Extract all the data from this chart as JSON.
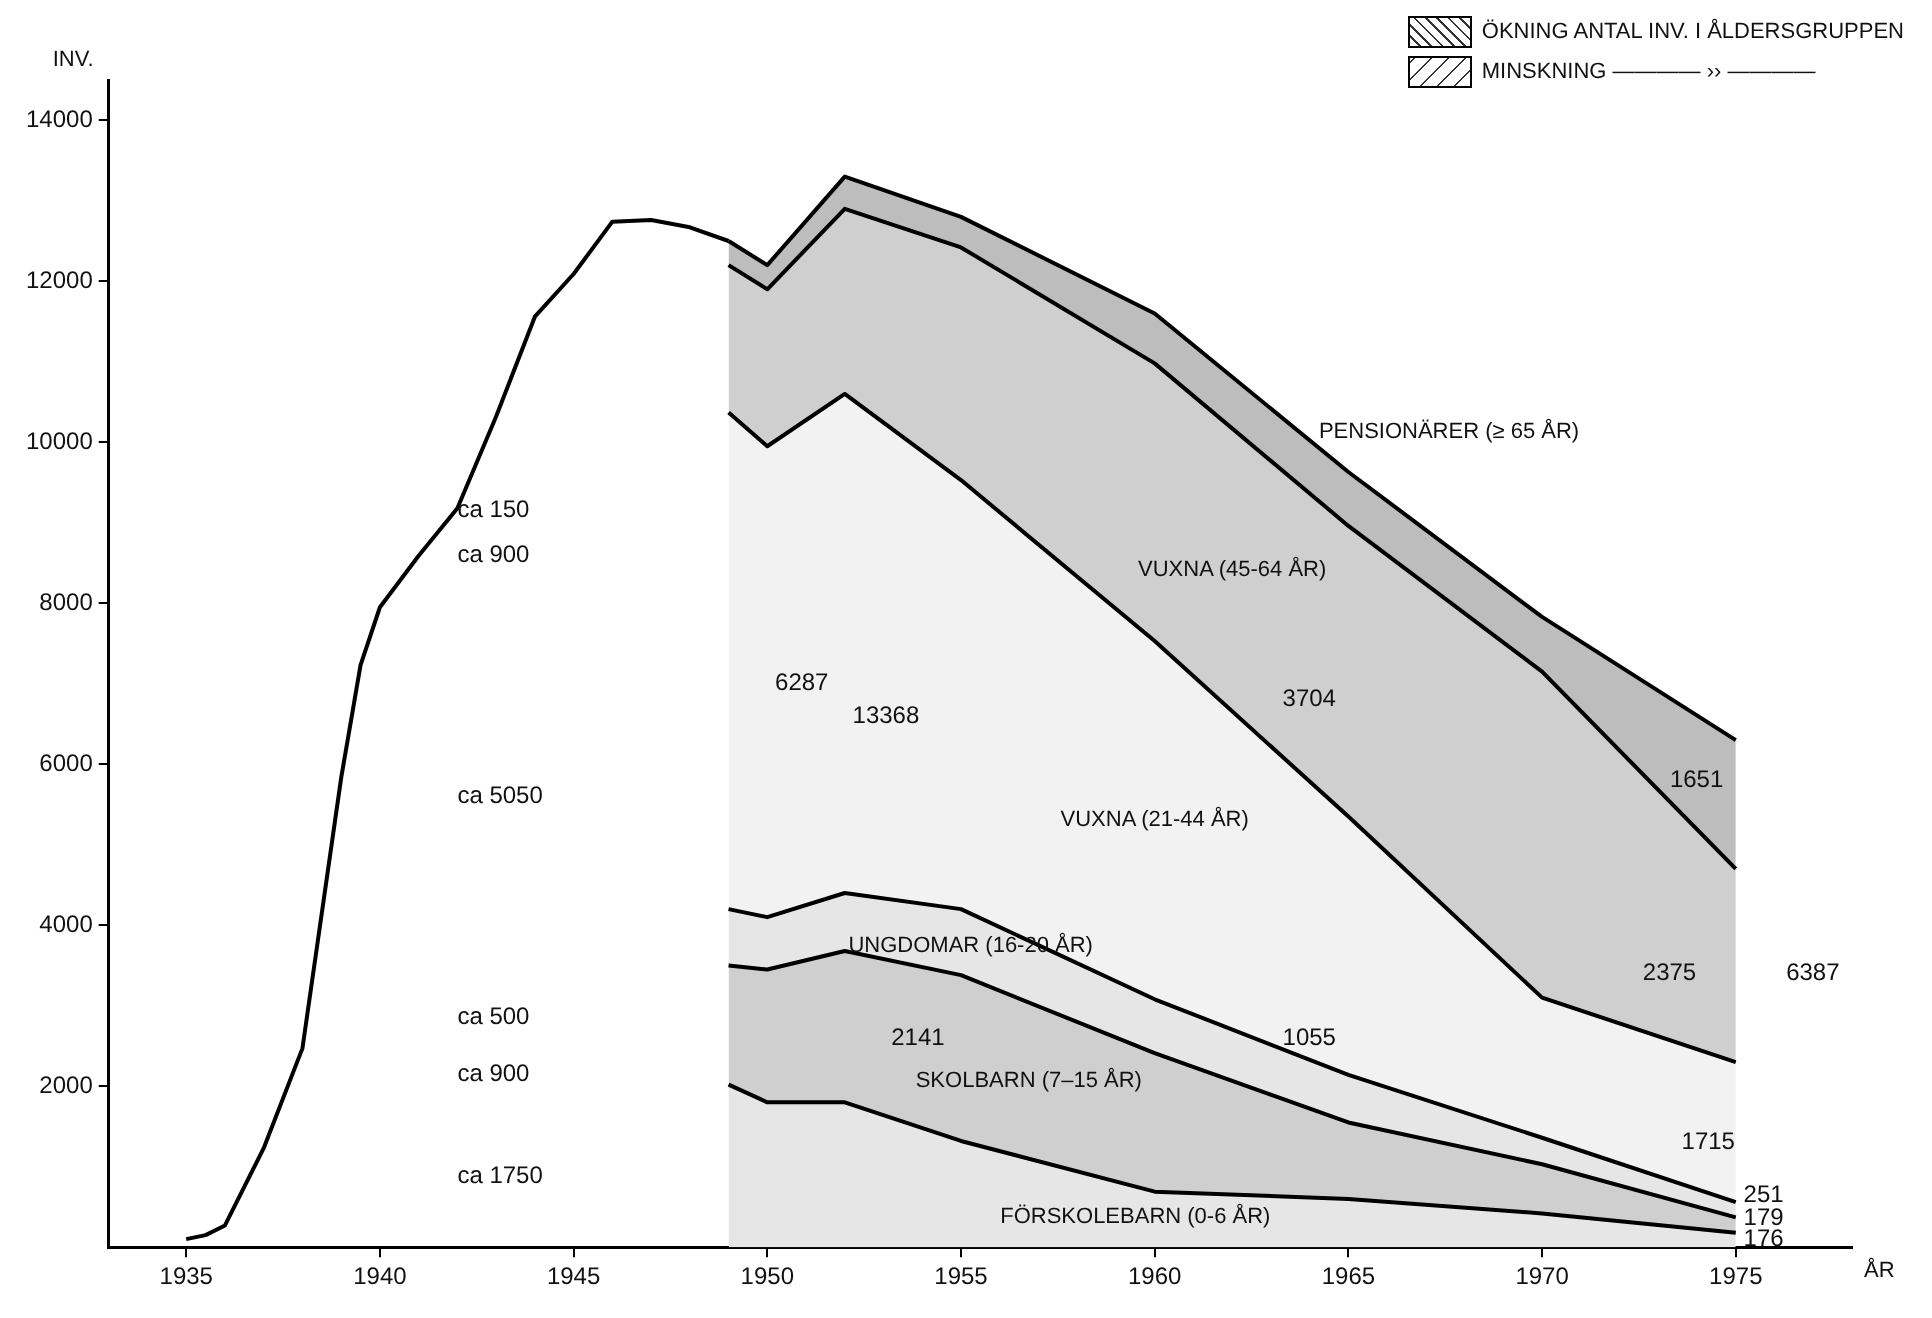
{
  "chart_data": {
    "type": "area",
    "xlabel": "ÅR",
    "ylabel": "INV.",
    "stacked": true,
    "grid": false,
    "legend": false,
    "x": [
      1949,
      1950,
      1952,
      1955,
      1960,
      1965,
      1970,
      1975
    ],
    "xlim": [
      1933,
      1978
    ],
    "xticks": [
      1935,
      1940,
      1945,
      1950,
      1955,
      1960,
      1965,
      1970,
      1975
    ],
    "ylim": [
      0,
      14500
    ],
    "yticks": [
      2000,
      4000,
      6000,
      8000,
      10000,
      12000,
      14000
    ],
    "series": [
      {
        "name": "FÖRSKOLEBARN (0-6 ÅR)",
        "color": "#e6e6e6",
        "values": [
          2020,
          1800,
          1800,
          1320,
          690,
          600,
          420,
          180
        ]
      },
      {
        "name": "SKOLBARN (7–15 ÅR)",
        "color": "#cfcfcf",
        "values": [
          1480,
          1650,
          1880,
          2060,
          1720,
          950,
          610,
          190
        ]
      },
      {
        "name": "UNGDOMAR (16-20 ÅR)",
        "color": "#e6e6e6",
        "values": [
          700,
          650,
          720,
          820,
          670,
          590,
          330,
          190
        ]
      },
      {
        "name": "VUXNA (21-44 ÅR)",
        "color": "#f2f2f2",
        "values": [
          6170,
          5850,
          6200,
          5330,
          4450,
          3210,
          1740,
          1740
        ]
      },
      {
        "name": "VUXNA (45-64 ÅR)",
        "color": "#cfcfcf",
        "values": [
          1830,
          1950,
          2300,
          2890,
          3450,
          3610,
          4050,
          2400
        ]
      },
      {
        "name": "PENSIONÄRER (≥ 65 ÅR)",
        "color": "#bdbdbd",
        "values": [
          300,
          300,
          400,
          380,
          620,
          670,
          680,
          1600
        ]
      },
      {
        "type": "line",
        "color": "#000000",
        "x": [
          1935,
          1935.5,
          1936,
          1937,
          1938,
          1939,
          1939.5,
          1940,
          1941,
          1942,
          1943,
          1944,
          1945,
          1946,
          1947,
          1948,
          1949
        ],
        "values": [
          100,
          150,
          270,
          1230,
          2470,
          5830,
          7230,
          7950,
          8590,
          9180,
          10320,
          11560,
          12090,
          12740,
          12760,
          12670,
          12500
        ]
      }
    ],
    "annotations": [
      "ÖKNING ANTAL INV. I ÅLDERSGRUPPEN",
      "MINSKNING ———— ›› ————",
      "ca 150",
      "ca 900",
      "ca 5050",
      "ca 500",
      "ca 900",
      "ca 1750",
      "6287",
      "13368",
      "3704",
      "2141",
      "1055",
      "1651",
      "2375",
      "1715",
      "251",
      "179",
      "176",
      "6387"
    ]
  }
}
